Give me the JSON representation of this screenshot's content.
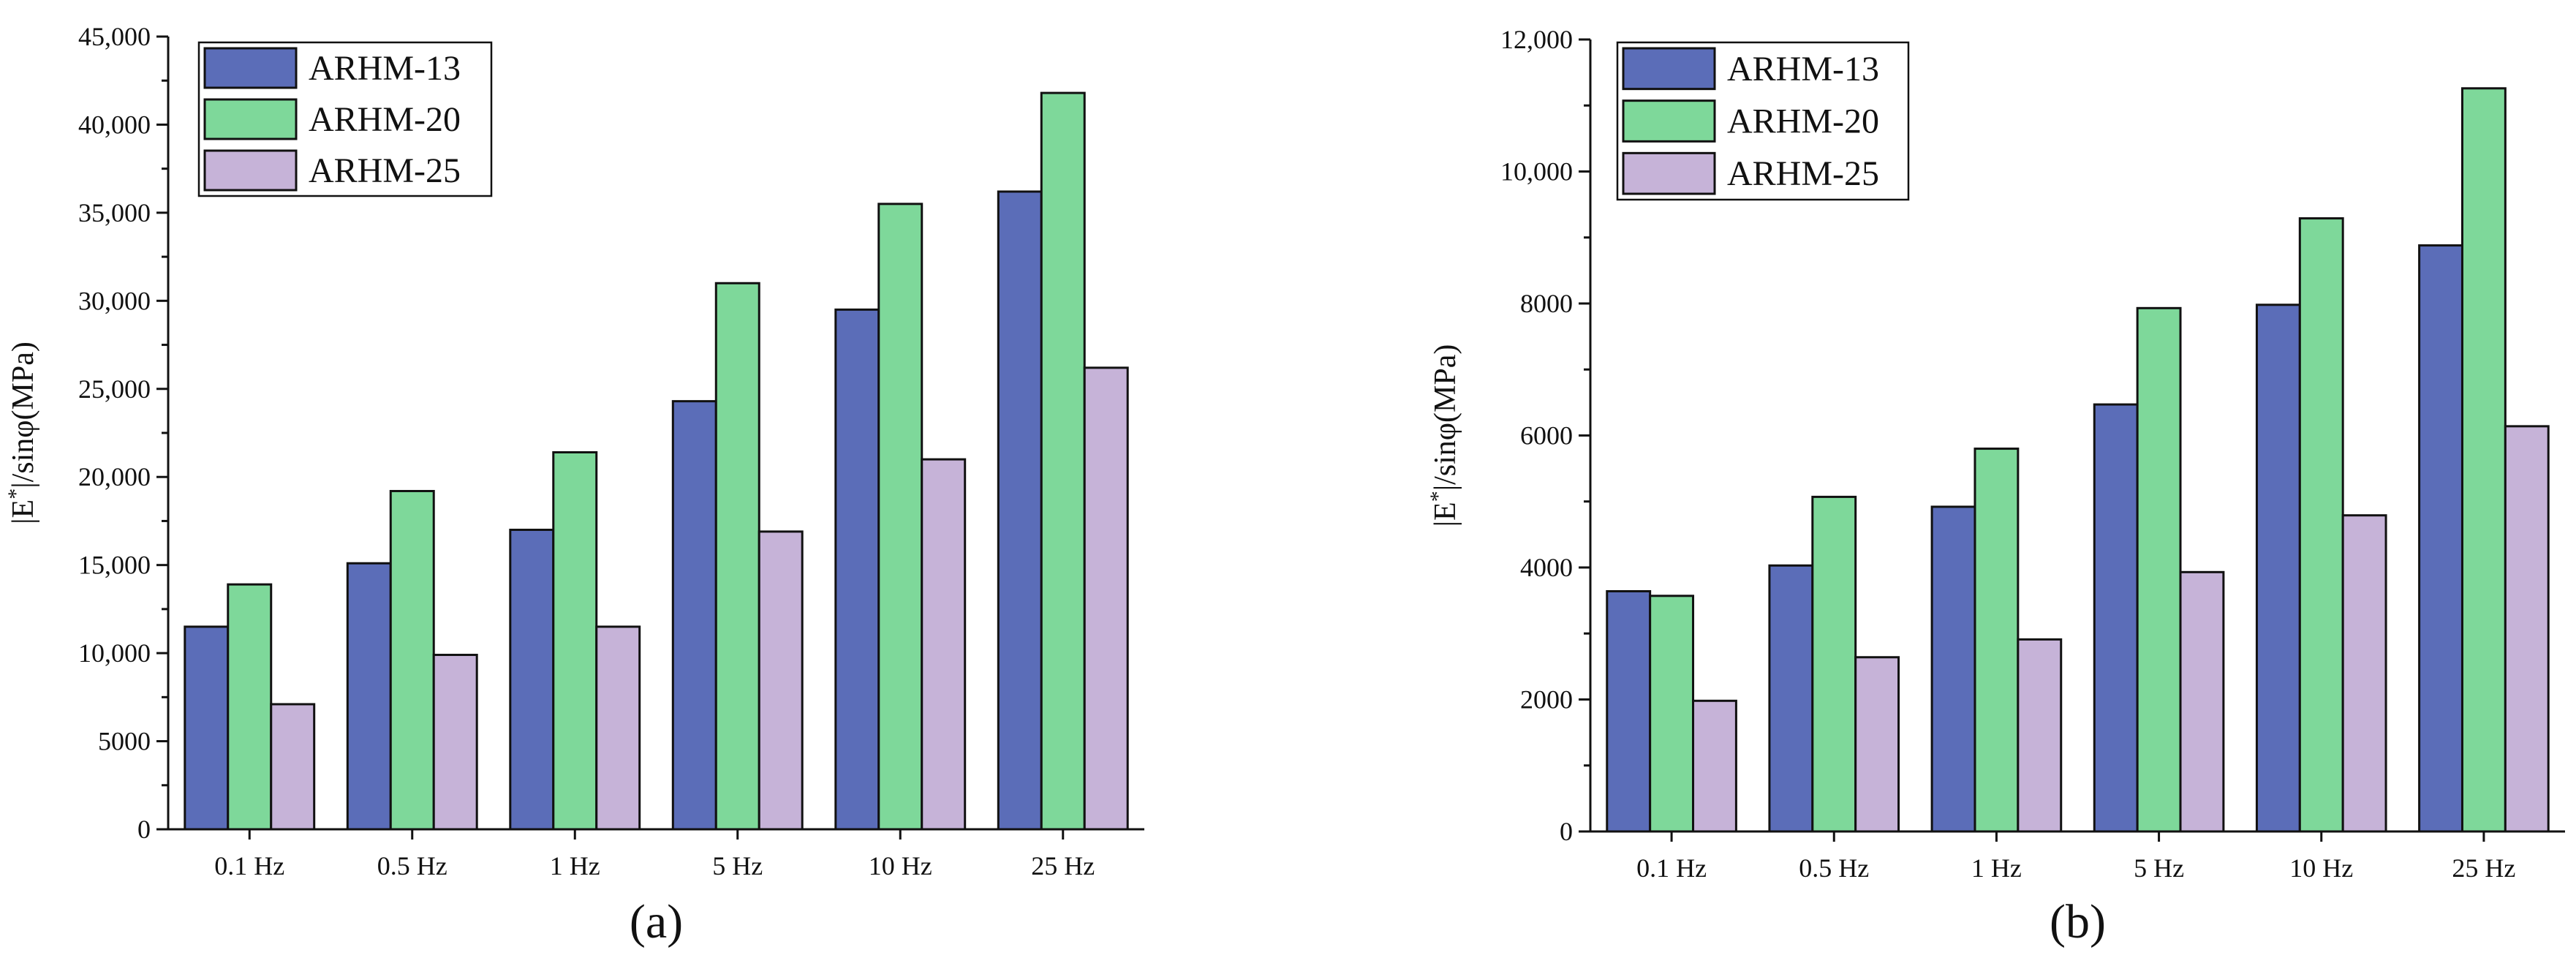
{
  "chart_data": [
    {
      "type": "bar",
      "panel_label": "(a)",
      "categories": [
        "0.1 Hz",
        "0.5 Hz",
        "1 Hz",
        "5 Hz",
        "10 Hz",
        "25 Hz"
      ],
      "series": [
        {
          "name": "ARHM-13",
          "color": "#5b6db8",
          "values": [
            11500,
            15100,
            17000,
            24300,
            29500,
            36200
          ]
        },
        {
          "name": "ARHM-20",
          "color": "#7ed89a",
          "values": [
            13900,
            19200,
            21400,
            31000,
            35500,
            41800
          ]
        },
        {
          "name": "ARHM-25",
          "color": "#c6b3d8",
          "values": [
            7100,
            9900,
            11500,
            16900,
            21000,
            26200
          ]
        }
      ],
      "ylabel": "|E*|/sinφ(MPa)",
      "ylim": [
        0,
        45000
      ],
      "yticks": [
        0,
        5000,
        10000,
        15000,
        20000,
        25000,
        30000,
        35000,
        40000,
        45000
      ],
      "ytick_labels": [
        "0",
        "5000",
        "10,000",
        "15,000",
        "20,000",
        "25,000",
        "30,000",
        "35,000",
        "40,000",
        "45,000"
      ],
      "legend_position": "top-left"
    },
    {
      "type": "bar",
      "panel_label": "(b)",
      "categories": [
        "0.1 Hz",
        "0.5 Hz",
        "1 Hz",
        "5 Hz",
        "10 Hz",
        "25 Hz"
      ],
      "series": [
        {
          "name": "ARHM-13",
          "color": "#5b6db8",
          "values": [
            3640,
            4030,
            4920,
            6470,
            7980,
            8880
          ]
        },
        {
          "name": "ARHM-20",
          "color": "#7ed89a",
          "values": [
            3570,
            5070,
            5800,
            7930,
            9290,
            11260
          ]
        },
        {
          "name": "ARHM-25",
          "color": "#c6b3d8",
          "values": [
            1980,
            2640,
            2910,
            3930,
            4790,
            6140
          ]
        }
      ],
      "ylabel": "|E*|/sinφ(MPa)",
      "ylim": [
        0,
        12000
      ],
      "yticks": [
        0,
        2000,
        4000,
        6000,
        8000,
        10000,
        12000
      ],
      "ytick_labels": [
        "0",
        "2000",
        "4000",
        "6000",
        "8000",
        "10,000",
        "12,000"
      ],
      "legend_position": "top-left"
    }
  ]
}
